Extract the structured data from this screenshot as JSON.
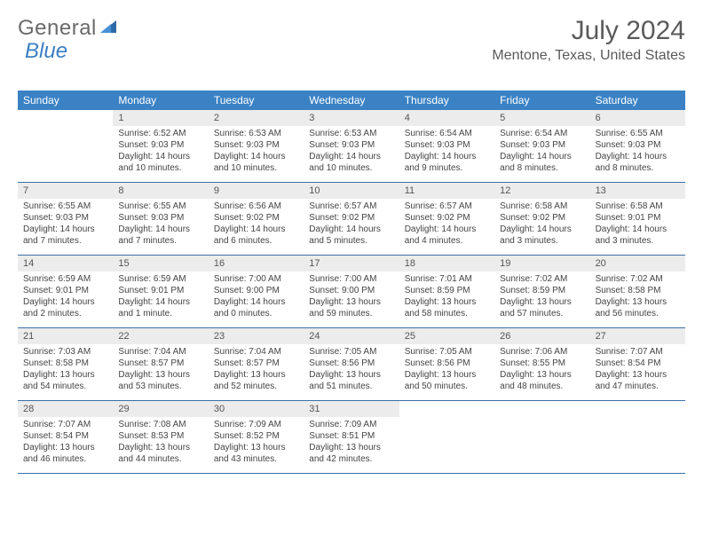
{
  "logo": {
    "general": "General",
    "blue": "Blue"
  },
  "title": "July 2024",
  "location": "Mentone, Texas, United States",
  "colors": {
    "header_bg": "#3b82c4",
    "header_text": "#ffffff",
    "daynum_bg": "#ececec",
    "border": "#3b6fa8",
    "text": "#444444"
  },
  "day_names": [
    "Sunday",
    "Monday",
    "Tuesday",
    "Wednesday",
    "Thursday",
    "Friday",
    "Saturday"
  ],
  "weeks": [
    [
      {
        "n": "",
        "sr": "",
        "ss": "",
        "dl": ""
      },
      {
        "n": "1",
        "sr": "Sunrise: 6:52 AM",
        "ss": "Sunset: 9:03 PM",
        "dl": "Daylight: 14 hours and 10 minutes."
      },
      {
        "n": "2",
        "sr": "Sunrise: 6:53 AM",
        "ss": "Sunset: 9:03 PM",
        "dl": "Daylight: 14 hours and 10 minutes."
      },
      {
        "n": "3",
        "sr": "Sunrise: 6:53 AM",
        "ss": "Sunset: 9:03 PM",
        "dl": "Daylight: 14 hours and 10 minutes."
      },
      {
        "n": "4",
        "sr": "Sunrise: 6:54 AM",
        "ss": "Sunset: 9:03 PM",
        "dl": "Daylight: 14 hours and 9 minutes."
      },
      {
        "n": "5",
        "sr": "Sunrise: 6:54 AM",
        "ss": "Sunset: 9:03 PM",
        "dl": "Daylight: 14 hours and 8 minutes."
      },
      {
        "n": "6",
        "sr": "Sunrise: 6:55 AM",
        "ss": "Sunset: 9:03 PM",
        "dl": "Daylight: 14 hours and 8 minutes."
      }
    ],
    [
      {
        "n": "7",
        "sr": "Sunrise: 6:55 AM",
        "ss": "Sunset: 9:03 PM",
        "dl": "Daylight: 14 hours and 7 minutes."
      },
      {
        "n": "8",
        "sr": "Sunrise: 6:55 AM",
        "ss": "Sunset: 9:03 PM",
        "dl": "Daylight: 14 hours and 7 minutes."
      },
      {
        "n": "9",
        "sr": "Sunrise: 6:56 AM",
        "ss": "Sunset: 9:02 PM",
        "dl": "Daylight: 14 hours and 6 minutes."
      },
      {
        "n": "10",
        "sr": "Sunrise: 6:57 AM",
        "ss": "Sunset: 9:02 PM",
        "dl": "Daylight: 14 hours and 5 minutes."
      },
      {
        "n": "11",
        "sr": "Sunrise: 6:57 AM",
        "ss": "Sunset: 9:02 PM",
        "dl": "Daylight: 14 hours and 4 minutes."
      },
      {
        "n": "12",
        "sr": "Sunrise: 6:58 AM",
        "ss": "Sunset: 9:02 PM",
        "dl": "Daylight: 14 hours and 3 minutes."
      },
      {
        "n": "13",
        "sr": "Sunrise: 6:58 AM",
        "ss": "Sunset: 9:01 PM",
        "dl": "Daylight: 14 hours and 3 minutes."
      }
    ],
    [
      {
        "n": "14",
        "sr": "Sunrise: 6:59 AM",
        "ss": "Sunset: 9:01 PM",
        "dl": "Daylight: 14 hours and 2 minutes."
      },
      {
        "n": "15",
        "sr": "Sunrise: 6:59 AM",
        "ss": "Sunset: 9:01 PM",
        "dl": "Daylight: 14 hours and 1 minute."
      },
      {
        "n": "16",
        "sr": "Sunrise: 7:00 AM",
        "ss": "Sunset: 9:00 PM",
        "dl": "Daylight: 14 hours and 0 minutes."
      },
      {
        "n": "17",
        "sr": "Sunrise: 7:00 AM",
        "ss": "Sunset: 9:00 PM",
        "dl": "Daylight: 13 hours and 59 minutes."
      },
      {
        "n": "18",
        "sr": "Sunrise: 7:01 AM",
        "ss": "Sunset: 8:59 PM",
        "dl": "Daylight: 13 hours and 58 minutes."
      },
      {
        "n": "19",
        "sr": "Sunrise: 7:02 AM",
        "ss": "Sunset: 8:59 PM",
        "dl": "Daylight: 13 hours and 57 minutes."
      },
      {
        "n": "20",
        "sr": "Sunrise: 7:02 AM",
        "ss": "Sunset: 8:58 PM",
        "dl": "Daylight: 13 hours and 56 minutes."
      }
    ],
    [
      {
        "n": "21",
        "sr": "Sunrise: 7:03 AM",
        "ss": "Sunset: 8:58 PM",
        "dl": "Daylight: 13 hours and 54 minutes."
      },
      {
        "n": "22",
        "sr": "Sunrise: 7:04 AM",
        "ss": "Sunset: 8:57 PM",
        "dl": "Daylight: 13 hours and 53 minutes."
      },
      {
        "n": "23",
        "sr": "Sunrise: 7:04 AM",
        "ss": "Sunset: 8:57 PM",
        "dl": "Daylight: 13 hours and 52 minutes."
      },
      {
        "n": "24",
        "sr": "Sunrise: 7:05 AM",
        "ss": "Sunset: 8:56 PM",
        "dl": "Daylight: 13 hours and 51 minutes."
      },
      {
        "n": "25",
        "sr": "Sunrise: 7:05 AM",
        "ss": "Sunset: 8:56 PM",
        "dl": "Daylight: 13 hours and 50 minutes."
      },
      {
        "n": "26",
        "sr": "Sunrise: 7:06 AM",
        "ss": "Sunset: 8:55 PM",
        "dl": "Daylight: 13 hours and 48 minutes."
      },
      {
        "n": "27",
        "sr": "Sunrise: 7:07 AM",
        "ss": "Sunset: 8:54 PM",
        "dl": "Daylight: 13 hours and 47 minutes."
      }
    ],
    [
      {
        "n": "28",
        "sr": "Sunrise: 7:07 AM",
        "ss": "Sunset: 8:54 PM",
        "dl": "Daylight: 13 hours and 46 minutes."
      },
      {
        "n": "29",
        "sr": "Sunrise: 7:08 AM",
        "ss": "Sunset: 8:53 PM",
        "dl": "Daylight: 13 hours and 44 minutes."
      },
      {
        "n": "30",
        "sr": "Sunrise: 7:09 AM",
        "ss": "Sunset: 8:52 PM",
        "dl": "Daylight: 13 hours and 43 minutes."
      },
      {
        "n": "31",
        "sr": "Sunrise: 7:09 AM",
        "ss": "Sunset: 8:51 PM",
        "dl": "Daylight: 13 hours and 42 minutes."
      },
      {
        "n": "",
        "sr": "",
        "ss": "",
        "dl": ""
      },
      {
        "n": "",
        "sr": "",
        "ss": "",
        "dl": ""
      },
      {
        "n": "",
        "sr": "",
        "ss": "",
        "dl": ""
      }
    ]
  ]
}
